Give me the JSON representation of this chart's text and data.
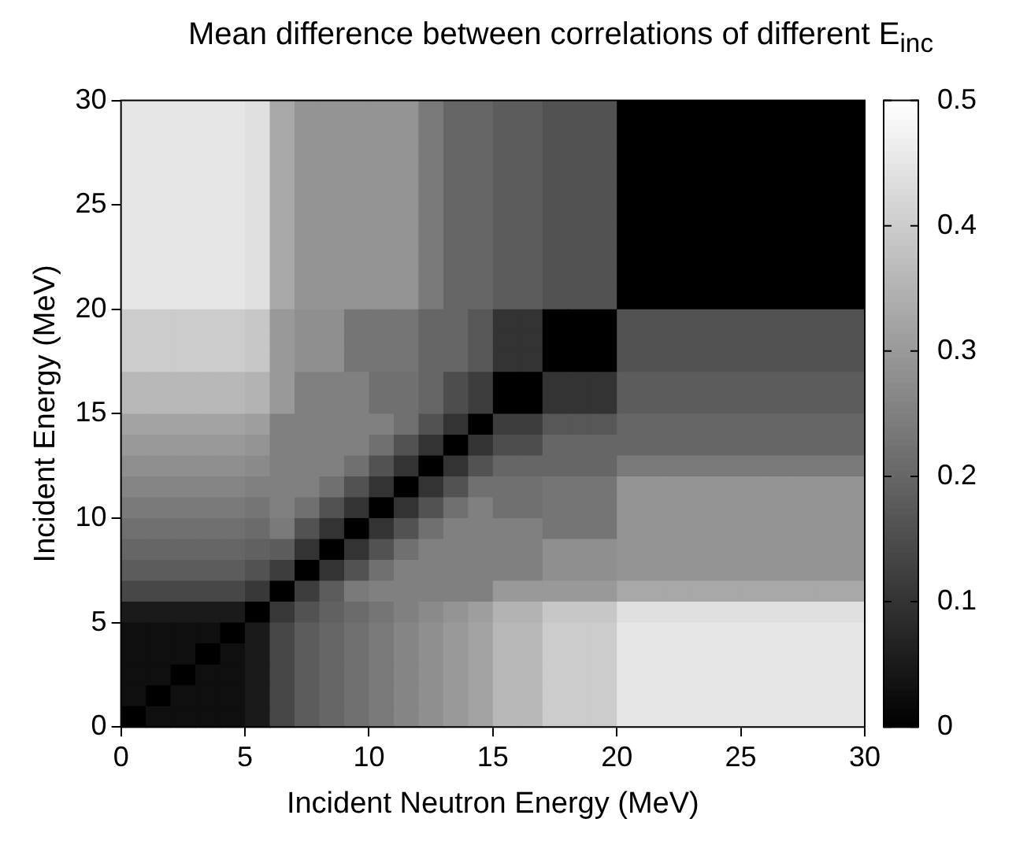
{
  "chart_data": {
    "type": "heatmap",
    "title": "Mean difference between correlations of different E$_{inc}$",
    "xlabel": "Incident Neutron Energy (MeV)",
    "ylabel": "Incident Energy (MeV)",
    "xlim": [
      0,
      30
    ],
    "xticks": [
      0,
      5,
      10,
      15,
      20,
      25,
      30
    ],
    "ylim": [
      0,
      30
    ],
    "yticks": [
      0,
      5,
      10,
      15,
      20,
      25,
      30
    ],
    "clim": [
      0,
      0.5
    ],
    "cticks": [
      0,
      0.1,
      0.2,
      0.3,
      0.4,
      0.5
    ],
    "colors": [
      "#000000",
      "#ffffff"
    ],
    "cells": [
      [
        0.45,
        0.45,
        0.45,
        0.45,
        0.45,
        0.44,
        0.33,
        0.29,
        0.29,
        0.29,
        0.29,
        0.29,
        0.24,
        0.2,
        0.2,
        0.18,
        0.18,
        0.16,
        0.16,
        0.16,
        0,
        0,
        0,
        0,
        0,
        0,
        0,
        0,
        0,
        0
      ],
      [
        0.45,
        0.45,
        0.45,
        0.45,
        0.45,
        0.44,
        0.33,
        0.29,
        0.29,
        0.29,
        0.29,
        0.29,
        0.24,
        0.2,
        0.2,
        0.18,
        0.18,
        0.16,
        0.16,
        0.16,
        0,
        0,
        0,
        0,
        0,
        0,
        0,
        0,
        0,
        0
      ],
      [
        0.45,
        0.45,
        0.45,
        0.45,
        0.45,
        0.44,
        0.33,
        0.29,
        0.29,
        0.29,
        0.29,
        0.29,
        0.24,
        0.2,
        0.2,
        0.18,
        0.18,
        0.16,
        0.16,
        0.16,
        0,
        0,
        0,
        0,
        0,
        0,
        0,
        0,
        0,
        0
      ],
      [
        0.45,
        0.45,
        0.45,
        0.45,
        0.45,
        0.44,
        0.33,
        0.29,
        0.29,
        0.29,
        0.29,
        0.29,
        0.24,
        0.2,
        0.2,
        0.18,
        0.18,
        0.16,
        0.16,
        0.16,
        0,
        0,
        0,
        0,
        0,
        0,
        0,
        0,
        0,
        0
      ],
      [
        0.45,
        0.45,
        0.45,
        0.45,
        0.45,
        0.44,
        0.33,
        0.29,
        0.29,
        0.29,
        0.29,
        0.29,
        0.24,
        0.2,
        0.2,
        0.18,
        0.18,
        0.16,
        0.16,
        0.16,
        0,
        0,
        0,
        0,
        0,
        0,
        0,
        0,
        0,
        0
      ],
      [
        0.45,
        0.45,
        0.45,
        0.45,
        0.45,
        0.44,
        0.33,
        0.29,
        0.29,
        0.29,
        0.29,
        0.29,
        0.24,
        0.2,
        0.2,
        0.18,
        0.18,
        0.16,
        0.16,
        0.16,
        0,
        0,
        0,
        0,
        0,
        0,
        0,
        0,
        0,
        0
      ],
      [
        0.45,
        0.45,
        0.45,
        0.45,
        0.45,
        0.44,
        0.33,
        0.29,
        0.29,
        0.29,
        0.29,
        0.29,
        0.24,
        0.2,
        0.2,
        0.18,
        0.18,
        0.16,
        0.16,
        0.16,
        0,
        0,
        0,
        0,
        0,
        0,
        0,
        0,
        0,
        0
      ],
      [
        0.45,
        0.45,
        0.45,
        0.45,
        0.45,
        0.44,
        0.33,
        0.29,
        0.29,
        0.29,
        0.29,
        0.29,
        0.24,
        0.2,
        0.2,
        0.18,
        0.18,
        0.16,
        0.16,
        0.16,
        0,
        0,
        0,
        0,
        0,
        0,
        0,
        0,
        0,
        0
      ],
      [
        0.45,
        0.45,
        0.45,
        0.45,
        0.45,
        0.44,
        0.33,
        0.29,
        0.29,
        0.29,
        0.29,
        0.29,
        0.24,
        0.2,
        0.2,
        0.18,
        0.18,
        0.16,
        0.16,
        0.16,
        0,
        0,
        0,
        0,
        0,
        0,
        0,
        0,
        0,
        0
      ],
      [
        0.45,
        0.45,
        0.45,
        0.45,
        0.45,
        0.44,
        0.33,
        0.29,
        0.29,
        0.29,
        0.29,
        0.29,
        0.24,
        0.2,
        0.2,
        0.18,
        0.18,
        0.16,
        0.16,
        0.16,
        0,
        0,
        0,
        0,
        0,
        0,
        0,
        0,
        0,
        0
      ],
      [
        0.4,
        0.4,
        0.4,
        0.4,
        0.4,
        0.39,
        0.3,
        0.28,
        0.28,
        0.23,
        0.23,
        0.23,
        0.2,
        0.2,
        0.17,
        0.1,
        0.1,
        0,
        0,
        0,
        0.16,
        0.16,
        0.16,
        0.16,
        0.16,
        0.16,
        0.16,
        0.16,
        0.16,
        0.16
      ],
      [
        0.4,
        0.4,
        0.4,
        0.4,
        0.4,
        0.39,
        0.3,
        0.28,
        0.28,
        0.23,
        0.23,
        0.23,
        0.2,
        0.2,
        0.17,
        0.1,
        0.1,
        0,
        0,
        0,
        0.16,
        0.16,
        0.16,
        0.16,
        0.16,
        0.16,
        0.16,
        0.16,
        0.16,
        0.16
      ],
      [
        0.4,
        0.4,
        0.4,
        0.4,
        0.4,
        0.39,
        0.3,
        0.28,
        0.28,
        0.23,
        0.23,
        0.23,
        0.2,
        0.2,
        0.17,
        0.1,
        0.1,
        0,
        0,
        0,
        0.16,
        0.16,
        0.16,
        0.16,
        0.16,
        0.16,
        0.16,
        0.16,
        0.16,
        0.16
      ],
      [
        0.36,
        0.36,
        0.36,
        0.36,
        0.36,
        0.35,
        0.3,
        0.25,
        0.25,
        0.25,
        0.22,
        0.22,
        0.2,
        0.15,
        0.12,
        0,
        0,
        0.1,
        0.1,
        0.1,
        0.18,
        0.18,
        0.18,
        0.18,
        0.18,
        0.18,
        0.18,
        0.18,
        0.18,
        0.18
      ],
      [
        0.36,
        0.36,
        0.36,
        0.36,
        0.36,
        0.35,
        0.3,
        0.25,
        0.25,
        0.25,
        0.22,
        0.22,
        0.2,
        0.15,
        0.12,
        0,
        0,
        0.1,
        0.1,
        0.1,
        0.18,
        0.18,
        0.18,
        0.18,
        0.18,
        0.18,
        0.18,
        0.18,
        0.18,
        0.18
      ],
      [
        0.32,
        0.32,
        0.32,
        0.32,
        0.32,
        0.31,
        0.25,
        0.25,
        0.25,
        0.25,
        0.25,
        0.22,
        0.16,
        0.1,
        0,
        0.12,
        0.12,
        0.17,
        0.17,
        0.17,
        0.2,
        0.2,
        0.2,
        0.2,
        0.2,
        0.2,
        0.2,
        0.2,
        0.2,
        0.2
      ],
      [
        0.3,
        0.3,
        0.3,
        0.3,
        0.3,
        0.29,
        0.25,
        0.25,
        0.25,
        0.25,
        0.22,
        0.16,
        0.1,
        0,
        0.1,
        0.15,
        0.15,
        0.2,
        0.2,
        0.2,
        0.2,
        0.2,
        0.2,
        0.2,
        0.2,
        0.2,
        0.2,
        0.2,
        0.2,
        0.2
      ],
      [
        0.28,
        0.28,
        0.28,
        0.28,
        0.28,
        0.27,
        0.25,
        0.25,
        0.25,
        0.22,
        0.16,
        0.1,
        0,
        0.1,
        0.16,
        0.2,
        0.2,
        0.2,
        0.2,
        0.2,
        0.24,
        0.24,
        0.24,
        0.24,
        0.24,
        0.24,
        0.24,
        0.24,
        0.24,
        0.24
      ],
      [
        0.26,
        0.26,
        0.26,
        0.26,
        0.26,
        0.25,
        0.25,
        0.25,
        0.22,
        0.16,
        0.1,
        0,
        0.1,
        0.16,
        0.22,
        0.22,
        0.22,
        0.23,
        0.23,
        0.23,
        0.29,
        0.29,
        0.29,
        0.29,
        0.29,
        0.29,
        0.29,
        0.29,
        0.29,
        0.29
      ],
      [
        0.24,
        0.24,
        0.24,
        0.24,
        0.24,
        0.23,
        0.25,
        0.22,
        0.16,
        0.1,
        0,
        0.1,
        0.16,
        0.22,
        0.25,
        0.22,
        0.22,
        0.23,
        0.23,
        0.23,
        0.29,
        0.29,
        0.29,
        0.29,
        0.29,
        0.29,
        0.29,
        0.29,
        0.29,
        0.29
      ],
      [
        0.22,
        0.22,
        0.22,
        0.22,
        0.22,
        0.21,
        0.24,
        0.16,
        0.1,
        0,
        0.1,
        0.16,
        0.22,
        0.25,
        0.25,
        0.25,
        0.25,
        0.23,
        0.23,
        0.23,
        0.29,
        0.29,
        0.29,
        0.29,
        0.29,
        0.29,
        0.29,
        0.29,
        0.29,
        0.29
      ],
      [
        0.2,
        0.2,
        0.2,
        0.2,
        0.2,
        0.19,
        0.18,
        0.1,
        0,
        0.1,
        0.16,
        0.22,
        0.25,
        0.25,
        0.25,
        0.25,
        0.25,
        0.28,
        0.28,
        0.28,
        0.29,
        0.29,
        0.29,
        0.29,
        0.29,
        0.29,
        0.29,
        0.29,
        0.29,
        0.29
      ],
      [
        0.18,
        0.18,
        0.18,
        0.18,
        0.18,
        0.16,
        0.12,
        0,
        0.1,
        0.16,
        0.22,
        0.25,
        0.25,
        0.25,
        0.25,
        0.25,
        0.25,
        0.28,
        0.28,
        0.28,
        0.29,
        0.29,
        0.29,
        0.29,
        0.29,
        0.29,
        0.29,
        0.29,
        0.29,
        0.29
      ],
      [
        0.14,
        0.14,
        0.14,
        0.14,
        0.14,
        0.11,
        0,
        0.12,
        0.18,
        0.24,
        0.25,
        0.25,
        0.25,
        0.25,
        0.25,
        0.3,
        0.3,
        0.3,
        0.3,
        0.3,
        0.33,
        0.33,
        0.33,
        0.33,
        0.33,
        0.33,
        0.33,
        0.33,
        0.33,
        0.33
      ],
      [
        0.05,
        0.05,
        0.05,
        0.05,
        0.05,
        0,
        0.11,
        0.16,
        0.19,
        0.21,
        0.23,
        0.25,
        0.27,
        0.29,
        0.31,
        0.35,
        0.35,
        0.39,
        0.39,
        0.39,
        0.44,
        0.44,
        0.44,
        0.44,
        0.44,
        0.44,
        0.44,
        0.44,
        0.44,
        0.44
      ],
      [
        0.03,
        0.03,
        0.03,
        0.03,
        0,
        0.05,
        0.14,
        0.18,
        0.2,
        0.22,
        0.24,
        0.26,
        0.28,
        0.3,
        0.32,
        0.36,
        0.36,
        0.4,
        0.4,
        0.4,
        0.45,
        0.45,
        0.45,
        0.45,
        0.45,
        0.45,
        0.45,
        0.45,
        0.45,
        0.45
      ],
      [
        0.03,
        0.03,
        0.03,
        0,
        0.03,
        0.05,
        0.14,
        0.18,
        0.2,
        0.22,
        0.24,
        0.26,
        0.28,
        0.3,
        0.32,
        0.36,
        0.36,
        0.4,
        0.4,
        0.4,
        0.45,
        0.45,
        0.45,
        0.45,
        0.45,
        0.45,
        0.45,
        0.45,
        0.45,
        0.45
      ],
      [
        0.03,
        0.03,
        0,
        0.03,
        0.03,
        0.05,
        0.14,
        0.18,
        0.2,
        0.22,
        0.24,
        0.26,
        0.28,
        0.3,
        0.32,
        0.36,
        0.36,
        0.4,
        0.4,
        0.4,
        0.45,
        0.45,
        0.45,
        0.45,
        0.45,
        0.45,
        0.45,
        0.45,
        0.45,
        0.45
      ],
      [
        0.03,
        0,
        0.03,
        0.03,
        0.03,
        0.05,
        0.14,
        0.18,
        0.2,
        0.22,
        0.24,
        0.26,
        0.28,
        0.3,
        0.32,
        0.36,
        0.36,
        0.4,
        0.4,
        0.4,
        0.45,
        0.45,
        0.45,
        0.45,
        0.45,
        0.45,
        0.45,
        0.45,
        0.45,
        0.45
      ],
      [
        0,
        0.03,
        0.03,
        0.03,
        0.03,
        0.05,
        0.14,
        0.18,
        0.2,
        0.22,
        0.24,
        0.26,
        0.28,
        0.3,
        0.32,
        0.36,
        0.36,
        0.4,
        0.4,
        0.4,
        0.45,
        0.45,
        0.45,
        0.45,
        0.45,
        0.45,
        0.45,
        0.45,
        0.45,
        0.45
      ]
    ]
  }
}
